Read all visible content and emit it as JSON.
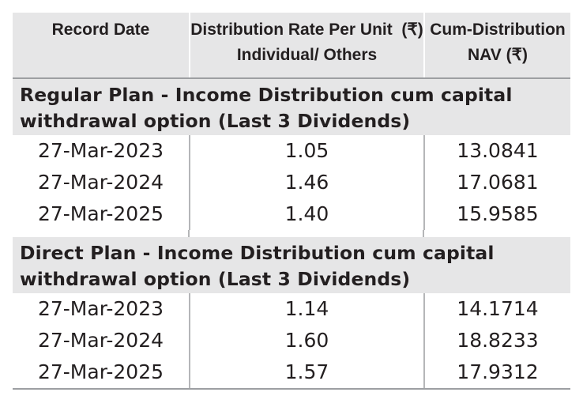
{
  "header": {
    "record_date": "Record Date",
    "rate_line1": "Distribution Rate Per Unit  (₹)",
    "rate_line2": "Individual/ Others",
    "nav_line1": "Cum-Distribution",
    "nav_line2": "NAV (₹)"
  },
  "sections": [
    {
      "title_line1": "Regular Plan - Income Distribution cum capital",
      "title_line2": "withdrawal option (Last 3 Dividends)",
      "rows": [
        {
          "date": "27-Mar-2023",
          "rate": "1.05",
          "nav": "13.0841"
        },
        {
          "date": "27-Mar-2024",
          "rate": "1.46",
          "nav": "17.0681"
        },
        {
          "date": "27-Mar-2025",
          "rate": "1.40",
          "nav": "15.9585"
        }
      ]
    },
    {
      "title_line1": "Direct Plan - Income Distribution cum capital",
      "title_line2": "withdrawal option (Last 3 Dividends)",
      "rows": [
        {
          "date": "27-Mar-2023",
          "rate": "1.14",
          "nav": "14.1714"
        },
        {
          "date": "27-Mar-2024",
          "rate": "1.60",
          "nav": "18.8233"
        },
        {
          "date": "27-Mar-2025",
          "rate": "1.57",
          "nav": "17.9312"
        }
      ]
    }
  ],
  "colors": {
    "header_bg": "#e6e6e7",
    "rule": "#9d9fa2",
    "text": "#231f20"
  }
}
